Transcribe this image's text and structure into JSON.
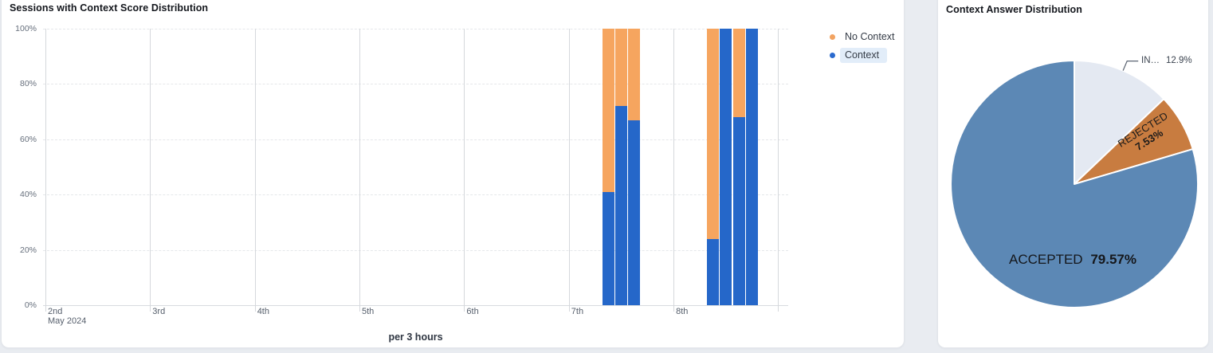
{
  "page": {
    "background": "#e9ecf1"
  },
  "left_card": {
    "title": "Sessions with Context Score Distribution",
    "x_axis_note": "per 3 hours",
    "legend": [
      {
        "label": "No Context",
        "color": "#f2a361",
        "selected": false
      },
      {
        "label": "Context",
        "color": "#2a6ace",
        "selected": true
      }
    ]
  },
  "right_card": {
    "title": "Context Answer Distribution"
  },
  "chart_data": [
    {
      "type": "bar",
      "stacked": true,
      "percent_stacked": true,
      "title": "Sessions with Context Score Distribution",
      "xlabel": "per 3 hours",
      "ylabel": "",
      "ylim": [
        0,
        100
      ],
      "y_ticks": [
        "0%",
        "20%",
        "40%",
        "60%",
        "80%",
        "100%"
      ],
      "x_ticks": [
        "2nd",
        "3rd",
        "4th",
        "5th",
        "6th",
        "7th",
        "8th"
      ],
      "x_axis_sub": "May 2024",
      "grid": true,
      "legend_position": "top-right",
      "colors": {
        "Context": "#2567c9",
        "No Context": "#f6a55f"
      },
      "bars": [
        {
          "date": "May 7",
          "time": "09:00",
          "context_pct": 41,
          "no_context_pct": 59
        },
        {
          "date": "May 7",
          "time": "12:00",
          "context_pct": 72,
          "no_context_pct": 28
        },
        {
          "date": "May 7",
          "time": "15:00",
          "context_pct": 67,
          "no_context_pct": 33
        },
        {
          "date": "May 8",
          "time": "09:00",
          "context_pct": 24,
          "no_context_pct": 76
        },
        {
          "date": "May 8",
          "time": "12:00",
          "context_pct": 100,
          "no_context_pct": 0
        },
        {
          "date": "May 8",
          "time": "15:00",
          "context_pct": 68,
          "no_context_pct": 32
        },
        {
          "date": "May 8",
          "time": "18:00",
          "context_pct": 100,
          "no_context_pct": 0
        }
      ]
    },
    {
      "type": "pie",
      "title": "Context Answer Distribution",
      "start_angle": "top",
      "direction": "clockwise",
      "slices": [
        {
          "label": "IN…",
          "value": 12.9,
          "display": "12.9%",
          "color": "#e4e9f2"
        },
        {
          "label": "REJECTED",
          "value": 7.53,
          "display": "7.53%",
          "color": "#c87c40"
        },
        {
          "label": "ACCEPTED",
          "value": 79.57,
          "display": "79.57%",
          "color": "#5c88b5"
        }
      ]
    }
  ]
}
